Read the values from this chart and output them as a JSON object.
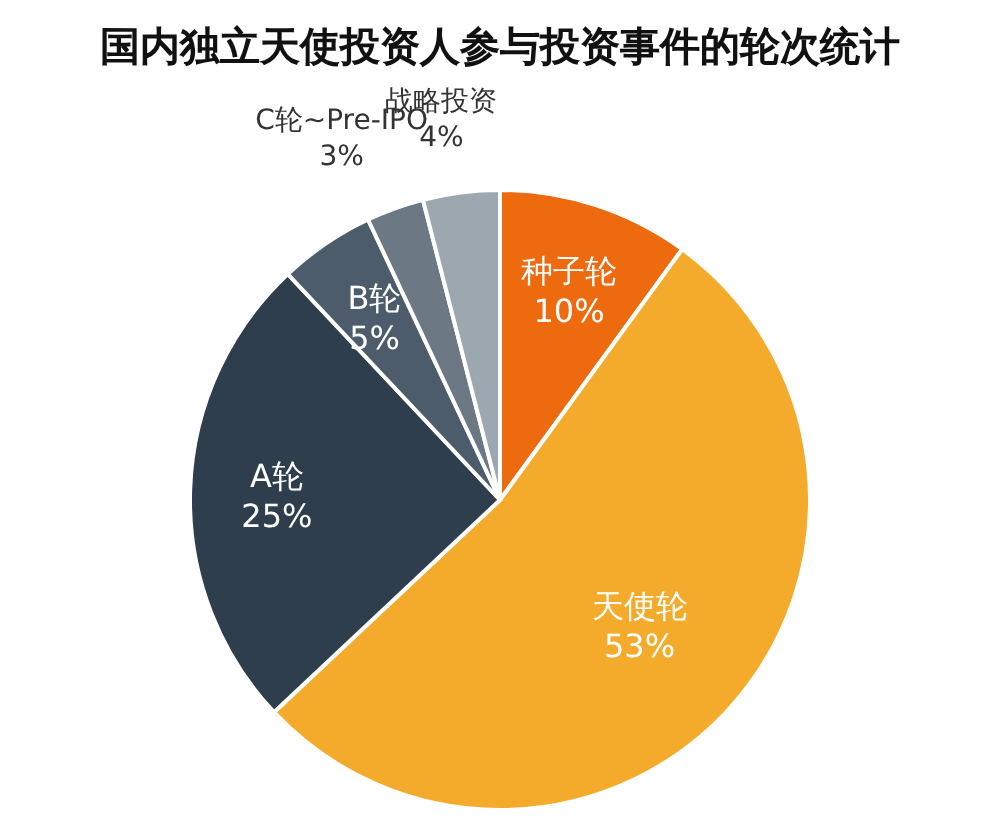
{
  "chart_data": {
    "type": "pie",
    "title": "国内独立天使投资人参与投资事件的轮次统计",
    "categories": [
      "种子轮",
      "天使轮",
      "A轮",
      "B轮",
      "C轮~Pre-IPO",
      "战略投资"
    ],
    "values": [
      10,
      53,
      25,
      5,
      3,
      4
    ],
    "value_labels": [
      "10%",
      "53%",
      "25%",
      "5%",
      "3%",
      "4%"
    ],
    "colors": [
      "#ee6a0f",
      "#f4ab2c",
      "#2e3e4d",
      "#4d5c6a",
      "#6c7985",
      "#9da7b0"
    ]
  }
}
